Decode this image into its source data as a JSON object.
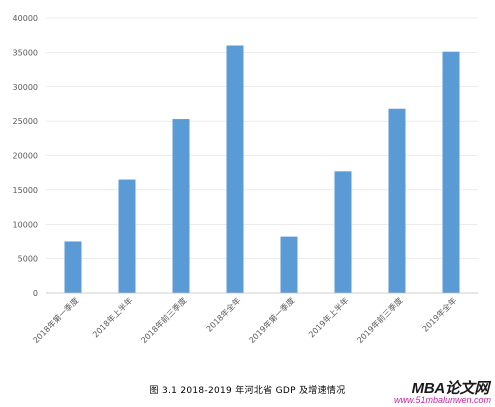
{
  "chart_data": {
    "type": "bar",
    "categories": [
      "2018年第一季度",
      "2018年上半年",
      "2018年前三季度",
      "2018年全年",
      "2019年第一季度",
      "2019年上半年",
      "2019年前三季度",
      "2019年全年"
    ],
    "values": [
      7500,
      16500,
      25300,
      36000,
      8200,
      17700,
      26800,
      35100
    ],
    "title": "",
    "xlabel": "",
    "ylabel": "",
    "ylim": [
      0,
      40000
    ],
    "yticks": [
      "0",
      "5000",
      "10000",
      "15000",
      "20000",
      "25000",
      "30000",
      "35000",
      "40000"
    ],
    "grid": true,
    "legend": "none",
    "colors": {
      "bar": "#5b9bd5",
      "grid": "#d9d9d9",
      "axis": "#bfbfbf"
    }
  },
  "caption": "图 3.1 2018-2019 年河北省 GDP 及增速情况",
  "watermark": {
    "brand": "MBA论文网",
    "url": "www.51mbalunwen.com"
  }
}
